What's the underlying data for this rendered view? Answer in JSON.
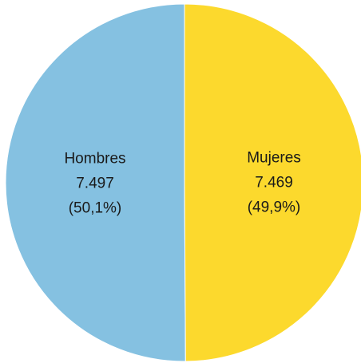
{
  "chart_data": {
    "type": "pie",
    "title": "",
    "slices": [
      {
        "category": "Hombres",
        "value": 7497,
        "value_label": "7.497",
        "percent": 50.1,
        "percent_label": "(50,1%)",
        "color": "#85c1e1"
      },
      {
        "category": "Mujeres",
        "value": 7469,
        "value_label": "7.469",
        "percent": 49.9,
        "percent_label": "(49,9%)",
        "color": "#fcd92d"
      }
    ],
    "start_angle": "12 o'clock",
    "direction": "counter-clockwise from top for first slice",
    "legend": "none",
    "slice_border_color": "#ffffff"
  }
}
